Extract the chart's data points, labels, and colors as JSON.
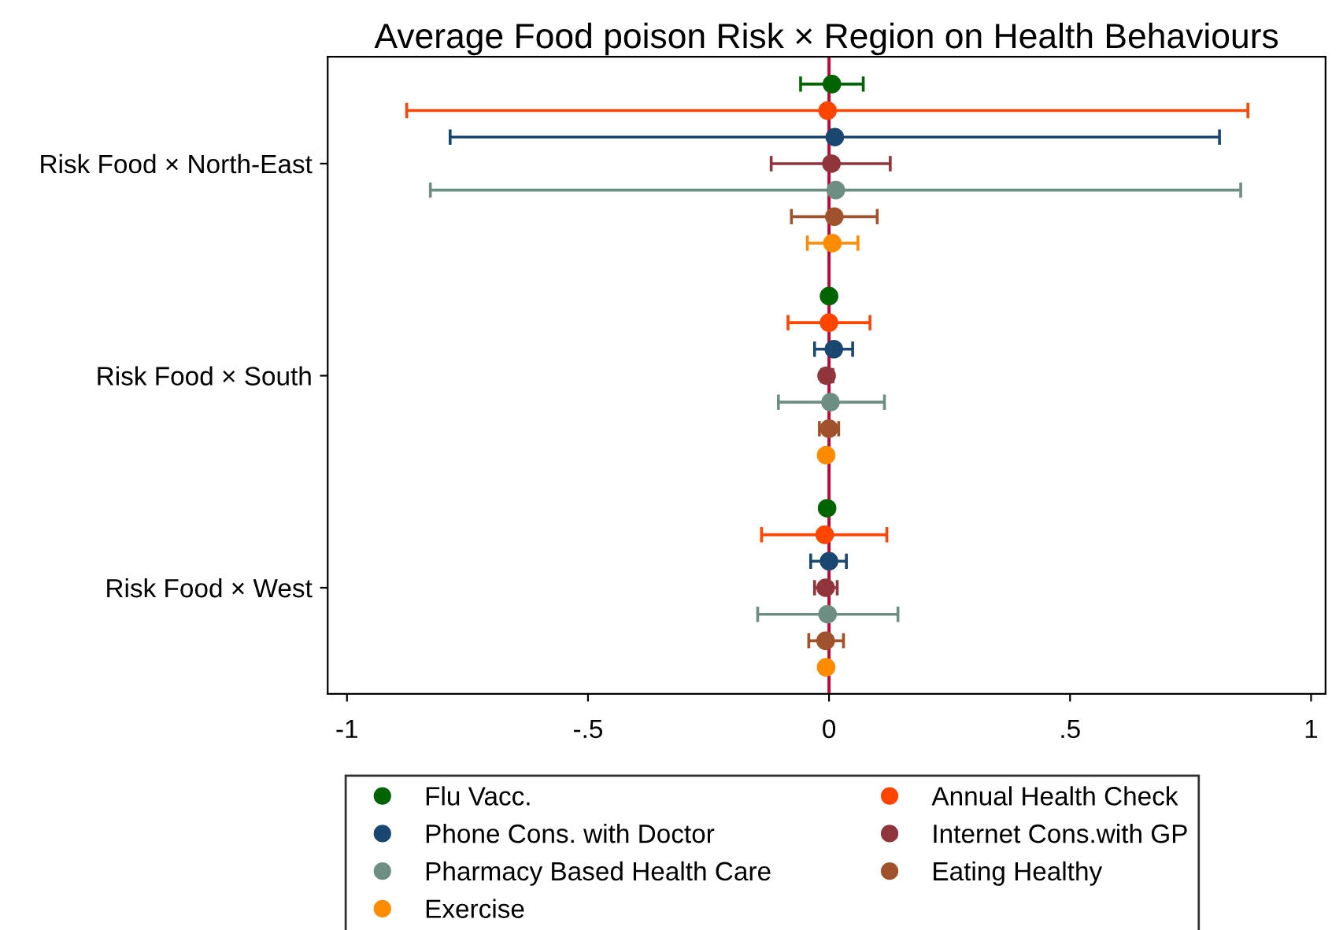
{
  "chart_data": {
    "type": "scatter",
    "orientation": "horizontal",
    "title": "Average Food poison Risk × Region on Health Behaviours",
    "categories": [
      "Risk Food × North-East",
      "Risk Food × South",
      "Risk Food × West"
    ],
    "series": [
      {
        "name": "Flu Vacc.",
        "color": "#006400",
        "values": [
          0.006,
          0.0,
          -0.004
        ],
        "errors": [
          [
            -0.059,
            0.071
          ],
          [
            -0.005,
            0.005
          ],
          [
            -0.008,
            0.0
          ]
        ]
      },
      {
        "name": "Annual Health Check",
        "color": "#ff4500",
        "values": [
          -0.003,
          0.0,
          -0.009
        ],
        "errors": [
          [
            -0.876,
            0.869
          ],
          [
            -0.085,
            0.085
          ],
          [
            -0.14,
            0.12
          ]
        ]
      },
      {
        "name": "Phone Cons. with Doctor",
        "color": "#1a476f",
        "values": [
          0.012,
          0.01,
          0.0
        ],
        "errors": [
          [
            -0.786,
            0.81
          ],
          [
            -0.03,
            0.049
          ],
          [
            -0.038,
            0.036
          ]
        ]
      },
      {
        "name": "Internet Cons.with GP",
        "color": "#90353b",
        "values": [
          0.005,
          -0.005,
          -0.007
        ],
        "errors": [
          [
            -0.12,
            0.127
          ],
          [
            -0.015,
            0.008
          ],
          [
            -0.03,
            0.017
          ]
        ]
      },
      {
        "name": "Pharmacy Based Health Care",
        "color": "#6e8e84",
        "values": [
          0.014,
          0.003,
          -0.003
        ],
        "errors": [
          [
            -0.827,
            0.854
          ],
          [
            -0.105,
            0.115
          ],
          [
            -0.148,
            0.143
          ]
        ]
      },
      {
        "name": "Eating Healthy",
        "color": "#a0522d",
        "values": [
          0.011,
          0.0,
          -0.007
        ],
        "errors": [
          [
            -0.078,
            0.1
          ],
          [
            -0.02,
            0.02
          ],
          [
            -0.042,
            0.03
          ]
        ]
      },
      {
        "name": "Exercise",
        "color": "#ff8c00",
        "values": [
          0.007,
          -0.006,
          -0.006
        ],
        "errors": [
          [
            -0.045,
            0.06
          ],
          [
            -0.01,
            -0.002
          ],
          [
            -0.01,
            -0.002
          ]
        ]
      }
    ],
    "xlim": [
      -1.04,
      1.03
    ],
    "xticks": [
      {
        "value": -1,
        "label": "-1"
      },
      {
        "value": -0.5,
        "label": "-.5"
      },
      {
        "value": 0,
        "label": "0"
      },
      {
        "value": 0.5,
        "label": ".5"
      },
      {
        "value": 1,
        "label": "1"
      }
    ],
    "ref_lines": [
      {
        "axis": "x",
        "value": 0,
        "color": "#c10534"
      }
    ],
    "marker": "circle",
    "legend": "bottom",
    "grid": false
  }
}
